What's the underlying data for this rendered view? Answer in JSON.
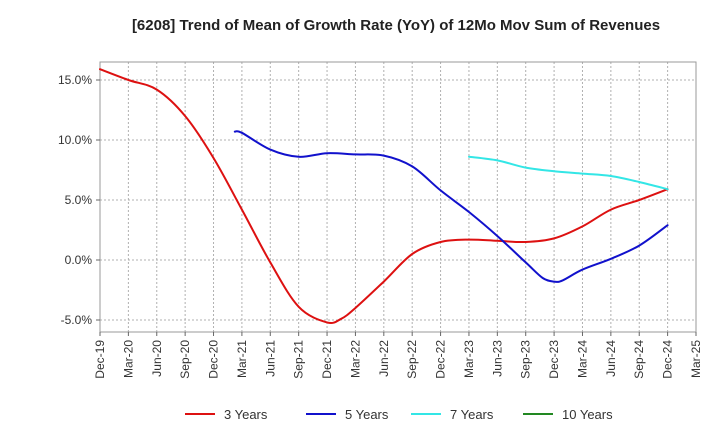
{
  "chart_data": {
    "type": "line",
    "title": "[6208]  Trend of Mean of Growth Rate (YoY) of 12Mo Mov Sum of Revenues",
    "xlabel": "",
    "ylabel": "",
    "ylim": [
      -6.0,
      16.5
    ],
    "yticks": [
      15.0,
      10.0,
      5.0,
      0.0,
      -5.0
    ],
    "ytick_labels": [
      "15.0%",
      "10.0%",
      "5.0%",
      "0.0%",
      "-5.0%"
    ],
    "x_categories": [
      "Dec-19",
      "Mar-20",
      "Jun-20",
      "Sep-20",
      "Dec-20",
      "Mar-21",
      "Jun-21",
      "Sep-21",
      "Dec-21",
      "Mar-22",
      "Jun-22",
      "Sep-22",
      "Dec-22",
      "Mar-23",
      "Jun-23",
      "Sep-23",
      "Dec-23",
      "Mar-24",
      "Jun-24",
      "Sep-24",
      "Dec-24",
      "Mar-25"
    ],
    "grid": true,
    "legend_position": "bottom",
    "series": [
      {
        "name": "3 Years",
        "color": "#dd1111",
        "points": [
          [
            0,
            15.9
          ],
          [
            1,
            15.0
          ],
          [
            2,
            14.2
          ],
          [
            3,
            12.0
          ],
          [
            4,
            8.5
          ],
          [
            5,
            4.2
          ],
          [
            6,
            -0.2
          ],
          [
            7,
            -3.9
          ],
          [
            8,
            -5.2
          ],
          [
            8.5,
            -4.9
          ],
          [
            9,
            -4.0
          ],
          [
            10,
            -1.8
          ],
          [
            11,
            0.5
          ],
          [
            12,
            1.5
          ],
          [
            13,
            1.7
          ],
          [
            14,
            1.6
          ],
          [
            15,
            1.5
          ],
          [
            16,
            1.8
          ],
          [
            17,
            2.8
          ],
          [
            18,
            4.2
          ],
          [
            19,
            5.0
          ],
          [
            20,
            5.9
          ]
        ]
      },
      {
        "name": "5 Years",
        "color": "#1111cc",
        "points": [
          [
            4.75,
            10.7
          ],
          [
            5,
            10.6
          ],
          [
            6,
            9.2
          ],
          [
            7,
            8.6
          ],
          [
            8,
            8.9
          ],
          [
            9,
            8.8
          ],
          [
            10,
            8.7
          ],
          [
            11,
            7.8
          ],
          [
            12,
            5.8
          ],
          [
            13,
            4.0
          ],
          [
            14,
            2.0
          ],
          [
            15,
            -0.2
          ],
          [
            15.6,
            -1.5
          ],
          [
            16,
            -1.8
          ],
          [
            16.3,
            -1.7
          ],
          [
            17,
            -0.8
          ],
          [
            18,
            0.1
          ],
          [
            19,
            1.2
          ],
          [
            20,
            2.9
          ]
        ]
      },
      {
        "name": "7 Years",
        "color": "#33e6e6",
        "points": [
          [
            13,
            8.6
          ],
          [
            14,
            8.3
          ],
          [
            15,
            7.7
          ],
          [
            16,
            7.4
          ],
          [
            17,
            7.2
          ],
          [
            18,
            7.0
          ],
          [
            19,
            6.5
          ],
          [
            20,
            5.9
          ]
        ]
      },
      {
        "name": "10 Years",
        "color": "#228822",
        "points": []
      }
    ]
  }
}
